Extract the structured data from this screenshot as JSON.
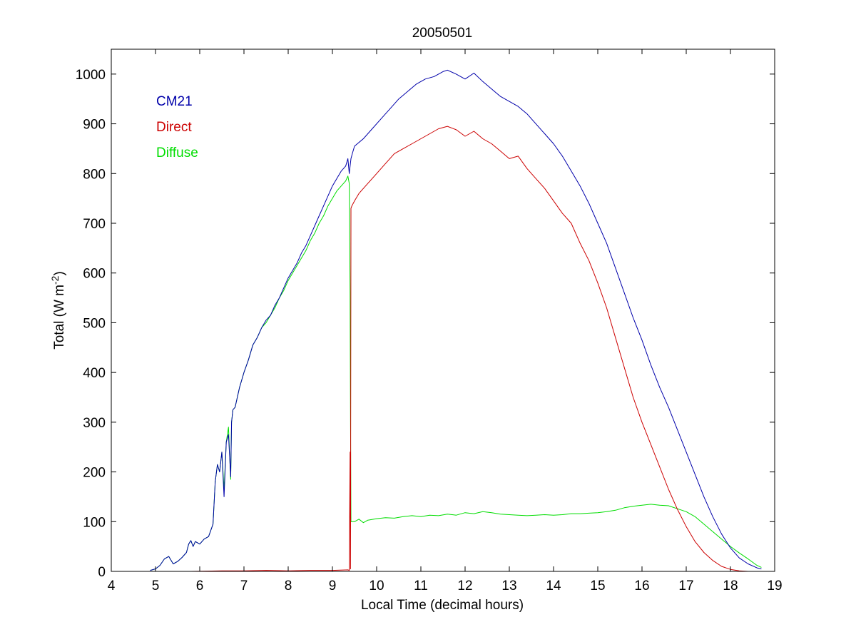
{
  "chart_data": {
    "type": "line",
    "title": "20050501",
    "xlabel": "Local Time (decimal hours)",
    "ylabel": "Total (W m",
    "ylabel_exponent": "-2",
    "ylabel_suffix": ")",
    "xlim": [
      4,
      19
    ],
    "ylim": [
      0,
      1050
    ],
    "xticks": [
      4,
      5,
      6,
      7,
      8,
      9,
      10,
      11,
      12,
      13,
      14,
      15,
      16,
      17,
      18,
      19
    ],
    "yticks": [
      0,
      100,
      200,
      300,
      400,
      500,
      600,
      700,
      800,
      900,
      1000
    ],
    "grid": false,
    "legend_placement": "top-left",
    "series": [
      {
        "name": "CM21",
        "color": "#0000aa",
        "points": [
          [
            4.88,
            2
          ],
          [
            5.0,
            5
          ],
          [
            5.1,
            12
          ],
          [
            5.2,
            25
          ],
          [
            5.3,
            30
          ],
          [
            5.4,
            15
          ],
          [
            5.5,
            20
          ],
          [
            5.6,
            28
          ],
          [
            5.7,
            38
          ],
          [
            5.75,
            55
          ],
          [
            5.8,
            62
          ],
          [
            5.85,
            50
          ],
          [
            5.9,
            60
          ],
          [
            6.0,
            55
          ],
          [
            6.1,
            65
          ],
          [
            6.2,
            70
          ],
          [
            6.3,
            95
          ],
          [
            6.35,
            180
          ],
          [
            6.4,
            215
          ],
          [
            6.45,
            200
          ],
          [
            6.5,
            240
          ],
          [
            6.55,
            150
          ],
          [
            6.6,
            260
          ],
          [
            6.65,
            275
          ],
          [
            6.7,
            190
          ],
          [
            6.72,
            300
          ],
          [
            6.75,
            325
          ],
          [
            6.8,
            330
          ],
          [
            6.9,
            370
          ],
          [
            7.0,
            400
          ],
          [
            7.1,
            425
          ],
          [
            7.2,
            455
          ],
          [
            7.3,
            470
          ],
          [
            7.4,
            490
          ],
          [
            7.5,
            505
          ],
          [
            7.6,
            515
          ],
          [
            7.7,
            535
          ],
          [
            7.8,
            550
          ],
          [
            7.9,
            570
          ],
          [
            8.0,
            590
          ],
          [
            8.1,
            605
          ],
          [
            8.2,
            620
          ],
          [
            8.3,
            640
          ],
          [
            8.4,
            655
          ],
          [
            8.5,
            675
          ],
          [
            8.6,
            695
          ],
          [
            8.7,
            715
          ],
          [
            8.8,
            735
          ],
          [
            8.9,
            755
          ],
          [
            9.0,
            775
          ],
          [
            9.1,
            790
          ],
          [
            9.2,
            805
          ],
          [
            9.3,
            815
          ],
          [
            9.35,
            830
          ],
          [
            9.38,
            800
          ],
          [
            9.42,
            830
          ],
          [
            9.45,
            840
          ],
          [
            9.5,
            855
          ],
          [
            9.7,
            870
          ],
          [
            9.9,
            890
          ],
          [
            10.1,
            910
          ],
          [
            10.3,
            930
          ],
          [
            10.5,
            950
          ],
          [
            10.7,
            965
          ],
          [
            10.9,
            980
          ],
          [
            11.1,
            990
          ],
          [
            11.3,
            995
          ],
          [
            11.5,
            1005
          ],
          [
            11.6,
            1008
          ],
          [
            11.8,
            1000
          ],
          [
            12.0,
            990
          ],
          [
            12.2,
            1002
          ],
          [
            12.4,
            985
          ],
          [
            12.6,
            970
          ],
          [
            12.8,
            955
          ],
          [
            13.0,
            945
          ],
          [
            13.2,
            935
          ],
          [
            13.4,
            920
          ],
          [
            13.6,
            900
          ],
          [
            13.8,
            880
          ],
          [
            14.0,
            860
          ],
          [
            14.2,
            835
          ],
          [
            14.4,
            805
          ],
          [
            14.6,
            775
          ],
          [
            14.8,
            740
          ],
          [
            15.0,
            700
          ],
          [
            15.2,
            660
          ],
          [
            15.4,
            610
          ],
          [
            15.6,
            560
          ],
          [
            15.8,
            510
          ],
          [
            16.0,
            465
          ],
          [
            16.2,
            415
          ],
          [
            16.4,
            370
          ],
          [
            16.6,
            330
          ],
          [
            16.8,
            285
          ],
          [
            17.0,
            240
          ],
          [
            17.2,
            195
          ],
          [
            17.4,
            150
          ],
          [
            17.6,
            110
          ],
          [
            17.8,
            75
          ],
          [
            18.0,
            47
          ],
          [
            18.2,
            27
          ],
          [
            18.4,
            15
          ],
          [
            18.6,
            7
          ],
          [
            18.7,
            5
          ]
        ]
      },
      {
        "name": "Direct",
        "color": "#cc0000",
        "points": [
          [
            5.8,
            0
          ],
          [
            6.5,
            1
          ],
          [
            7.0,
            1
          ],
          [
            7.5,
            2
          ],
          [
            8.0,
            1
          ],
          [
            8.5,
            2
          ],
          [
            9.0,
            2
          ],
          [
            9.35,
            3
          ],
          [
            9.38,
            2
          ],
          [
            9.4,
            240
          ],
          [
            9.41,
            5
          ],
          [
            9.42,
            730
          ],
          [
            9.44,
            735
          ],
          [
            9.5,
            745
          ],
          [
            9.6,
            760
          ],
          [
            9.8,
            780
          ],
          [
            10.0,
            800
          ],
          [
            10.2,
            820
          ],
          [
            10.4,
            840
          ],
          [
            10.6,
            850
          ],
          [
            10.8,
            860
          ],
          [
            11.0,
            870
          ],
          [
            11.2,
            880
          ],
          [
            11.4,
            890
          ],
          [
            11.6,
            895
          ],
          [
            11.8,
            888
          ],
          [
            12.0,
            875
          ],
          [
            12.2,
            885
          ],
          [
            12.4,
            870
          ],
          [
            12.6,
            860
          ],
          [
            12.8,
            845
          ],
          [
            13.0,
            830
          ],
          [
            13.2,
            835
          ],
          [
            13.4,
            810
          ],
          [
            13.6,
            790
          ],
          [
            13.8,
            770
          ],
          [
            14.0,
            745
          ],
          [
            14.2,
            720
          ],
          [
            14.4,
            700
          ],
          [
            14.6,
            660
          ],
          [
            14.8,
            625
          ],
          [
            15.0,
            580
          ],
          [
            15.2,
            530
          ],
          [
            15.4,
            470
          ],
          [
            15.6,
            410
          ],
          [
            15.8,
            350
          ],
          [
            16.0,
            300
          ],
          [
            16.2,
            255
          ],
          [
            16.4,
            210
          ],
          [
            16.6,
            165
          ],
          [
            16.8,
            125
          ],
          [
            17.0,
            90
          ],
          [
            17.2,
            60
          ],
          [
            17.4,
            38
          ],
          [
            17.6,
            22
          ],
          [
            17.8,
            10
          ],
          [
            18.0,
            4
          ],
          [
            18.2,
            1
          ],
          [
            18.4,
            0
          ]
        ]
      },
      {
        "name": "Diffuse",
        "color": "#00dd00",
        "points": [
          [
            4.88,
            2
          ],
          [
            5.0,
            5
          ],
          [
            5.1,
            12
          ],
          [
            5.2,
            25
          ],
          [
            5.3,
            30
          ],
          [
            5.4,
            15
          ],
          [
            5.5,
            20
          ],
          [
            5.6,
            28
          ],
          [
            5.7,
            38
          ],
          [
            5.75,
            55
          ],
          [
            5.8,
            62
          ],
          [
            5.85,
            50
          ],
          [
            5.9,
            60
          ],
          [
            6.0,
            55
          ],
          [
            6.1,
            65
          ],
          [
            6.2,
            70
          ],
          [
            6.3,
            95
          ],
          [
            6.35,
            180
          ],
          [
            6.4,
            215
          ],
          [
            6.45,
            200
          ],
          [
            6.5,
            240
          ],
          [
            6.55,
            165
          ],
          [
            6.6,
            260
          ],
          [
            6.65,
            290
          ],
          [
            6.7,
            185
          ],
          [
            6.72,
            300
          ],
          [
            6.75,
            325
          ],
          [
            6.8,
            330
          ],
          [
            6.9,
            370
          ],
          [
            7.0,
            400
          ],
          [
            7.1,
            425
          ],
          [
            7.2,
            455
          ],
          [
            7.3,
            470
          ],
          [
            7.4,
            490
          ],
          [
            7.5,
            500
          ],
          [
            7.6,
            515
          ],
          [
            7.7,
            530
          ],
          [
            7.8,
            550
          ],
          [
            7.9,
            565
          ],
          [
            8.0,
            585
          ],
          [
            8.1,
            600
          ],
          [
            8.2,
            615
          ],
          [
            8.3,
            630
          ],
          [
            8.4,
            645
          ],
          [
            8.5,
            665
          ],
          [
            8.6,
            680
          ],
          [
            8.7,
            700
          ],
          [
            8.8,
            715
          ],
          [
            8.9,
            735
          ],
          [
            9.0,
            750
          ],
          [
            9.1,
            765
          ],
          [
            9.2,
            775
          ],
          [
            9.3,
            785
          ],
          [
            9.35,
            795
          ],
          [
            9.38,
            780
          ],
          [
            9.4,
            560
          ],
          [
            9.41,
            300
          ],
          [
            9.42,
            100
          ],
          [
            9.5,
            100
          ],
          [
            9.6,
            105
          ],
          [
            9.7,
            98
          ],
          [
            9.8,
            103
          ],
          [
            10.0,
            106
          ],
          [
            10.2,
            108
          ],
          [
            10.4,
            107
          ],
          [
            10.6,
            110
          ],
          [
            10.8,
            112
          ],
          [
            11.0,
            110
          ],
          [
            11.2,
            113
          ],
          [
            11.4,
            112
          ],
          [
            11.6,
            115
          ],
          [
            11.8,
            113
          ],
          [
            12.0,
            118
          ],
          [
            12.2,
            116
          ],
          [
            12.4,
            120
          ],
          [
            12.6,
            118
          ],
          [
            12.8,
            115
          ],
          [
            13.0,
            114
          ],
          [
            13.2,
            113
          ],
          [
            13.4,
            112
          ],
          [
            13.6,
            113
          ],
          [
            13.8,
            114
          ],
          [
            14.0,
            113
          ],
          [
            14.2,
            114
          ],
          [
            14.4,
            116
          ],
          [
            14.6,
            116
          ],
          [
            14.8,
            117
          ],
          [
            15.0,
            118
          ],
          [
            15.2,
            120
          ],
          [
            15.4,
            123
          ],
          [
            15.6,
            128
          ],
          [
            15.8,
            131
          ],
          [
            16.0,
            133
          ],
          [
            16.2,
            135
          ],
          [
            16.4,
            133
          ],
          [
            16.6,
            132
          ],
          [
            16.8,
            126
          ],
          [
            17.0,
            120
          ],
          [
            17.2,
            110
          ],
          [
            17.4,
            95
          ],
          [
            17.6,
            80
          ],
          [
            17.8,
            65
          ],
          [
            18.0,
            50
          ],
          [
            18.2,
            37
          ],
          [
            18.4,
            25
          ],
          [
            18.6,
            12
          ],
          [
            18.7,
            8
          ]
        ]
      }
    ]
  }
}
